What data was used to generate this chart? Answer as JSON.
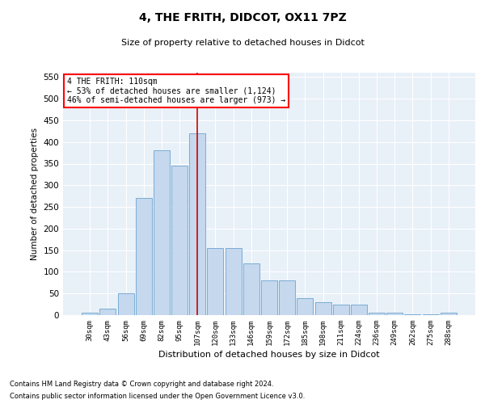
{
  "title": "4, THE FRITH, DIDCOT, OX11 7PZ",
  "subtitle": "Size of property relative to detached houses in Didcot",
  "xlabel": "Distribution of detached houses by size in Didcot",
  "ylabel": "Number of detached properties",
  "categories": [
    "30sqm",
    "43sqm",
    "56sqm",
    "69sqm",
    "82sqm",
    "95sqm",
    "107sqm",
    "120sqm",
    "133sqm",
    "146sqm",
    "159sqm",
    "172sqm",
    "185sqm",
    "198sqm",
    "211sqm",
    "224sqm",
    "236sqm",
    "249sqm",
    "262sqm",
    "275sqm",
    "288sqm"
  ],
  "values": [
    5,
    15,
    50,
    270,
    380,
    345,
    420,
    155,
    155,
    120,
    80,
    80,
    40,
    30,
    25,
    25,
    5,
    5,
    2,
    2,
    5
  ],
  "highlight_index": 6,
  "highlight_color": "#cc0000",
  "bar_color": "#c5d8ee",
  "bar_edge_color": "#7aadd4",
  "background_color": "#e8f0f8",
  "annotation_box_text": "4 THE FRITH: 110sqm\n← 53% of detached houses are smaller (1,124)\n46% of semi-detached houses are larger (973) →",
  "footnote1": "Contains HM Land Registry data © Crown copyright and database right 2024.",
  "footnote2": "Contains public sector information licensed under the Open Government Licence v3.0.",
  "ylim": [
    0,
    560
  ],
  "yticks": [
    0,
    50,
    100,
    150,
    200,
    250,
    300,
    350,
    400,
    450,
    500,
    550
  ]
}
